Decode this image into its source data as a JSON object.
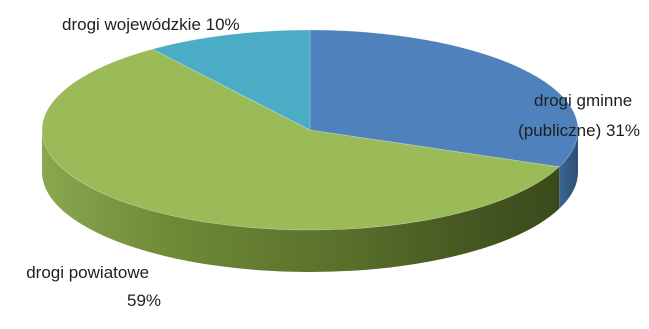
{
  "chart_data": {
    "type": "pie",
    "title": "",
    "three_d": true,
    "slices": [
      {
        "label_lines": [
          "drogi gminne",
          "(publiczne) 31%"
        ],
        "value": 31,
        "color": "#4f81bd"
      },
      {
        "label_lines": [
          "drogi powiatowe",
          "59%"
        ],
        "value": 59,
        "color": "#9bbb59"
      },
      {
        "label_lines": [
          "drogi wojewódzkie 10%"
        ],
        "value": 10,
        "color": "#4bacc6"
      }
    ],
    "legend": "none"
  }
}
